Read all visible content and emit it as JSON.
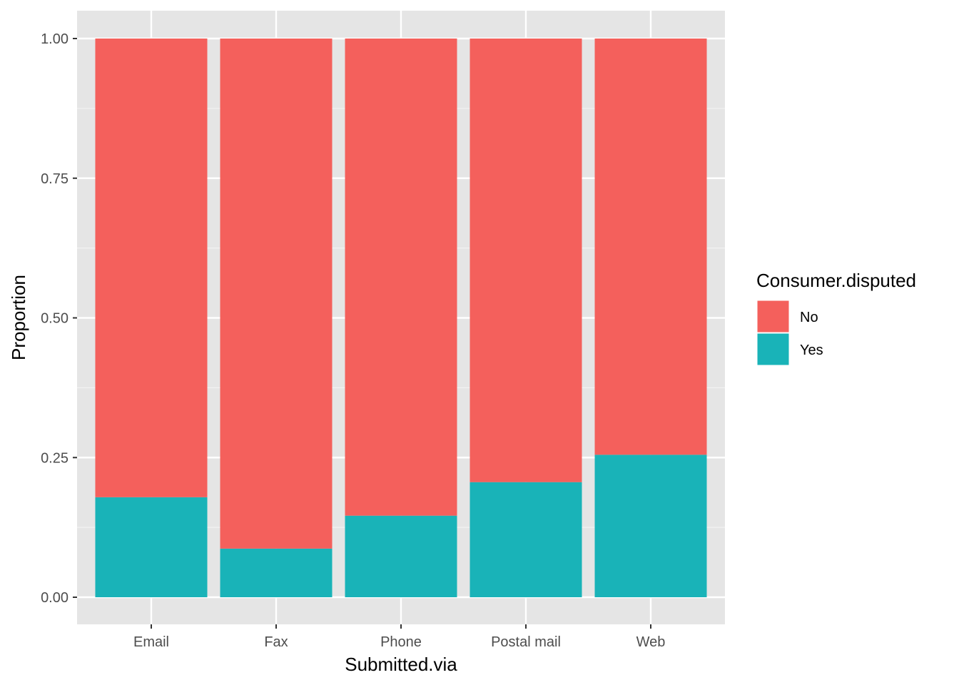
{
  "chart_data": {
    "type": "bar",
    "stacked": true,
    "position": "fill",
    "title": "",
    "xlabel": "Submitted.via",
    "ylabel": "Proportion",
    "ylim": [
      0,
      1
    ],
    "yticks": [
      "0.00",
      "0.25",
      "0.50",
      "0.75",
      "1.00"
    ],
    "categories": [
      "Email",
      "Fax",
      "Phone",
      "Postal mail",
      "Web"
    ],
    "series": [
      {
        "name": "No",
        "color": "#F4605C",
        "values": [
          0.821,
          0.913,
          0.854,
          0.794,
          0.745
        ]
      },
      {
        "name": "Yes",
        "color": "#19B3B8",
        "values": [
          0.179,
          0.087,
          0.146,
          0.206,
          0.255
        ]
      }
    ],
    "grid": true,
    "legend": {
      "title": "Consumer.disputed",
      "placement": "right",
      "entries": [
        "No",
        "Yes"
      ]
    },
    "panel_background": "#E5E5E5"
  }
}
